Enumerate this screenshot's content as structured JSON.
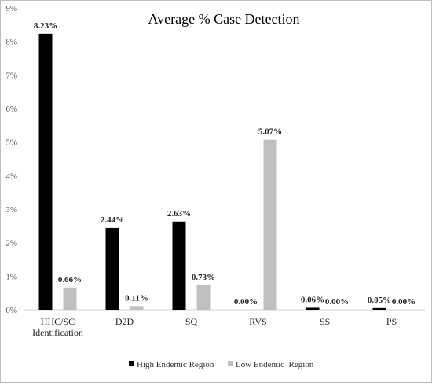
{
  "chart_data": {
    "type": "bar",
    "title": "Average % Case Detection",
    "xlabel": "",
    "ylabel": "",
    "ylim": [
      0,
      9
    ],
    "y_ticks": [
      "0%",
      "1%",
      "2%",
      "3%",
      "4%",
      "5%",
      "6%",
      "7%",
      "8%",
      "9%"
    ],
    "y_tick_values": [
      0,
      1,
      2,
      3,
      4,
      5,
      6,
      7,
      8,
      9
    ],
    "grid": false,
    "legend_position": "bottom",
    "categories": [
      [
        "HHC/SC",
        "Identification"
      ],
      [
        "D2D"
      ],
      [
        "SQ"
      ],
      [
        "RVS"
      ],
      [
        "SS"
      ],
      [
        "PS"
      ]
    ],
    "series": [
      {
        "name": "High Endemic Region",
        "color": "#000000",
        "values": [
          8.23,
          2.44,
          2.63,
          0.0,
          0.06,
          0.05
        ],
        "labels": [
          "8.23%",
          "2.44%",
          "2.63%",
          "0.00%",
          "0.06%",
          "0.05%"
        ]
      },
      {
        "name": "Low Endemic  Region",
        "color": "#bfbfbf",
        "values": [
          0.66,
          0.11,
          0.73,
          5.07,
          0.0,
          0.0
        ],
        "labels": [
          "0.66%",
          "0.11%",
          "0.73%",
          "5.07%",
          "0.00%",
          "0.00%"
        ]
      }
    ]
  }
}
